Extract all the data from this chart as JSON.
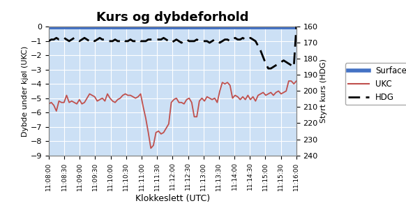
{
  "title": "Kurs og dybdeforhold",
  "xlabel": "Klokkeslett (UTC)",
  "ylabel_left": "Dybde under kjøl (UKC)",
  "ylabel_right": "Styrt kurs (HDG)",
  "plot_bg_color": "#cce0f5",
  "fig_bg_color": "#ffffff",
  "ylim_left": [
    -9,
    0
  ],
  "ylim_right": [
    240,
    160
  ],
  "yticks_left": [
    0,
    -1,
    -2,
    -3,
    -4,
    -5,
    -6,
    -7,
    -8,
    -9
  ],
  "yticks_right": [
    160,
    170,
    180,
    190,
    200,
    210,
    220,
    230,
    240
  ],
  "time_labels": [
    "11:08:00",
    "11:08:30",
    "11:09:00",
    "11:09:30",
    "11:10:00",
    "11:10:30",
    "11:11:00",
    "11:11:30",
    "11:12:00",
    "11:12:30",
    "11:13:00",
    "11:13:30",
    "11:14:00",
    "11:14:30",
    "11:15:00",
    "11:15:30",
    "11:16:00"
  ],
  "ukc_y": [
    -5.4,
    -5.3,
    -5.5,
    -5.9,
    -5.2,
    -5.3,
    -5.3,
    -4.8,
    -5.3,
    -5.2,
    -5.3,
    -5.4,
    -5.1,
    -5.4,
    -5.3,
    -5.0,
    -4.7,
    -4.8,
    -4.9,
    -5.2,
    -5.1,
    -5.0,
    -5.2,
    -4.7,
    -5.0,
    -5.2,
    -5.3,
    -5.1,
    -5.0,
    -4.8,
    -4.7,
    -4.8,
    -4.8,
    -4.9,
    -5.0,
    -4.9,
    -4.7,
    -5.6,
    -6.4,
    -7.4,
    -8.5,
    -8.3,
    -7.4,
    -7.3,
    -7.5,
    -7.4,
    -7.1,
    -6.8,
    -5.3,
    -5.1,
    -5.0,
    -5.3,
    -5.3,
    -5.4,
    -5.1,
    -5.0,
    -5.3,
    -6.3,
    -6.3,
    -5.2,
    -5.0,
    -5.2,
    -4.9,
    -5.0,
    -5.1,
    -5.0,
    -5.3,
    -4.5,
    -3.9,
    -4.0,
    -3.9,
    -4.1,
    -5.0,
    -4.8,
    -4.9,
    -5.1,
    -4.9,
    -5.1,
    -4.8,
    -5.1,
    -4.9,
    -5.2,
    -4.8,
    -4.7,
    -4.6,
    -4.8,
    -4.7,
    -4.6,
    -4.8,
    -4.6,
    -4.5,
    -4.7,
    -4.6,
    -4.5,
    -3.8,
    -3.8,
    -4.0,
    -3.8
  ],
  "hdg_y": [
    169,
    168,
    168,
    167,
    168,
    168,
    167,
    168,
    169,
    168,
    167,
    168,
    169,
    168,
    167,
    168,
    169,
    168,
    169,
    168,
    167,
    168,
    168,
    169,
    169,
    169,
    168,
    169,
    169,
    168,
    169,
    169,
    168,
    169,
    169,
    168,
    169,
    169,
    169,
    168,
    168,
    168,
    168,
    168,
    168,
    167,
    168,
    169,
    170,
    169,
    168,
    169,
    170,
    169,
    168,
    169,
    169,
    169,
    168,
    169,
    169,
    169,
    169,
    170,
    169,
    168,
    169,
    170,
    169,
    168,
    168,
    169,
    168,
    167,
    168,
    168,
    167,
    168,
    168,
    167,
    168,
    169,
    172,
    175,
    179,
    183,
    186,
    186,
    185,
    184,
    183,
    182,
    181,
    182,
    183,
    184,
    185,
    160
  ],
  "surface_color": "#4472c4",
  "ukc_color": "#c0504d",
  "hdg_color": "#000000",
  "grid_color": "#ffffff",
  "border_color": "#808080"
}
